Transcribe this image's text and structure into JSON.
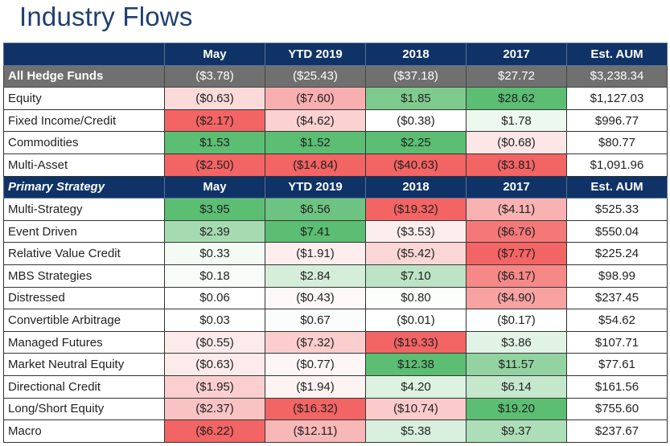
{
  "title": "Industry Flows",
  "colors": {
    "header_bg": "#0F3366",
    "summary_bg": "#707070",
    "title_color": "#1F3F73",
    "positive_max": "#5BBE73",
    "negative_max": "#F36464"
  },
  "sections": [
    {
      "header": {
        "label": "",
        "columns": [
          "May",
          "YTD 2019",
          "2018",
          "2017",
          "Est. AUM"
        ]
      },
      "rows": [
        {
          "type": "summary",
          "label": "All Hedge Funds",
          "cells": [
            {
              "text": "($3.78)",
              "bg": "#707070"
            },
            {
              "text": "($25.43)",
              "bg": "#707070"
            },
            {
              "text": "($37.18)",
              "bg": "#707070"
            },
            {
              "text": "$27.72",
              "bg": "#707070"
            },
            {
              "text": "$3,238.34",
              "bg": "#707070"
            }
          ]
        },
        {
          "type": "row",
          "label": "Equity",
          "cells": [
            {
              "text": "($0.63)",
              "bg": "#FBDADA"
            },
            {
              "text": "($7.60)",
              "bg": "#F9AFAF"
            },
            {
              "text": "$1.85",
              "bg": "#7FCB8E"
            },
            {
              "text": "$28.62",
              "bg": "#5BBE73"
            },
            {
              "text": "$1,127.03",
              "bg": "#FFFFFF"
            }
          ]
        },
        {
          "type": "row",
          "label": "Fixed Income/Credit",
          "cells": [
            {
              "text": "($2.17)",
              "bg": "#F36464"
            },
            {
              "text": "($4.62)",
              "bg": "#FBD1D1"
            },
            {
              "text": "($0.38)",
              "bg": "#FFFFFF"
            },
            {
              "text": "$1.78",
              "bg": "#EDF8EF"
            },
            {
              "text": "$996.77",
              "bg": "#FFFFFF"
            }
          ]
        },
        {
          "type": "row",
          "label": "Commodities",
          "cells": [
            {
              "text": "$1.53",
              "bg": "#5BBE73"
            },
            {
              "text": "$1.52",
              "bg": "#5BBE73"
            },
            {
              "text": "$2.25",
              "bg": "#5BBE73"
            },
            {
              "text": "($0.68)",
              "bg": "#FDE6E6"
            },
            {
              "text": "$80.77",
              "bg": "#FFFFFF"
            }
          ]
        },
        {
          "type": "row",
          "label": "Multi-Asset",
          "cells": [
            {
              "text": "($2.50)",
              "bg": "#F36464"
            },
            {
              "text": "($14.84)",
              "bg": "#F36464"
            },
            {
              "text": "($40.63)",
              "bg": "#F36464"
            },
            {
              "text": "($3.81)",
              "bg": "#F36464"
            },
            {
              "text": "$1,091.96",
              "bg": "#FFFFFF"
            }
          ]
        }
      ]
    },
    {
      "header": {
        "label": "Primary Strategy",
        "columns": [
          "May",
          "YTD 2019",
          "2018",
          "2017",
          "Est. AUM"
        ]
      },
      "rows": [
        {
          "type": "row",
          "label": "Multi-Strategy",
          "cells": [
            {
              "text": "$3.95",
              "bg": "#5BBE73"
            },
            {
              "text": "$6.56",
              "bg": "#6DC482"
            },
            {
              "text": "($19.32)",
              "bg": "#F36464"
            },
            {
              "text": "($4.11)",
              "bg": "#F9B2B2"
            },
            {
              "text": "$525.33",
              "bg": "#FFFFFF"
            }
          ]
        },
        {
          "type": "row",
          "label": "Event Driven",
          "cells": [
            {
              "text": "$2.39",
              "bg": "#A6DBB1"
            },
            {
              "text": "$7.41",
              "bg": "#5BBE73"
            },
            {
              "text": "($3.53)",
              "bg": "#FDEEEE"
            },
            {
              "text": "($6.76)",
              "bg": "#F47878"
            },
            {
              "text": "$550.04",
              "bg": "#FFFFFF"
            }
          ]
        },
        {
          "type": "row",
          "label": "Relative Value Credit",
          "cells": [
            {
              "text": "$0.33",
              "bg": "#F4FBF5"
            },
            {
              "text": "($1.91)",
              "bg": "#FDEDED"
            },
            {
              "text": "($5.42)",
              "bg": "#FBD6D6"
            },
            {
              "text": "($7.77)",
              "bg": "#F36464"
            },
            {
              "text": "$225.24",
              "bg": "#FFFFFF"
            }
          ]
        },
        {
          "type": "row",
          "label": "MBS Strategies",
          "cells": [
            {
              "text": "$0.18",
              "bg": "#F8FCF9"
            },
            {
              "text": "$2.84",
              "bg": "#D4EED9"
            },
            {
              "text": "$7.10",
              "bg": "#BCE4C5"
            },
            {
              "text": "($6.17)",
              "bg": "#F68888"
            },
            {
              "text": "$98.99",
              "bg": "#FFFFFF"
            }
          ]
        },
        {
          "type": "row",
          "label": "Distressed",
          "cells": [
            {
              "text": "$0.06",
              "bg": "#FFFFFF"
            },
            {
              "text": "($0.43)",
              "bg": "#FEF8F8"
            },
            {
              "text": "$0.80",
              "bg": "#FCFEFC"
            },
            {
              "text": "($4.90)",
              "bg": "#F8A2A2"
            },
            {
              "text": "$237.45",
              "bg": "#FFFFFF"
            }
          ]
        },
        {
          "type": "row",
          "label": "Convertible Arbitrage",
          "cells": [
            {
              "text": "$0.03",
              "bg": "#FFFFFF"
            },
            {
              "text": "$0.67",
              "bg": "#FAFDFB"
            },
            {
              "text": "($0.01)",
              "bg": "#FFFFFF"
            },
            {
              "text": "($0.17)",
              "bg": "#FFFFFF"
            },
            {
              "text": "$54.62",
              "bg": "#FFFFFF"
            }
          ]
        },
        {
          "type": "row",
          "label": "Managed Futures",
          "cells": [
            {
              "text": "($0.55)",
              "bg": "#FDEBEB"
            },
            {
              "text": "($7.32)",
              "bg": "#FBCDCD"
            },
            {
              "text": "($19.33)",
              "bg": "#F36464"
            },
            {
              "text": "$3.86",
              "bg": "#E1F3E5"
            },
            {
              "text": "$107.71",
              "bg": "#FFFFFF"
            }
          ]
        },
        {
          "type": "row",
          "label": "Market Neutral Equity",
          "cells": [
            {
              "text": "($0.63)",
              "bg": "#FDEAEA"
            },
            {
              "text": "($0.77)",
              "bg": "#FEF6F6"
            },
            {
              "text": "$12.38",
              "bg": "#5BBE73"
            },
            {
              "text": "$11.57",
              "bg": "#93D3A1"
            },
            {
              "text": "$77.61",
              "bg": "#FFFFFF"
            }
          ]
        },
        {
          "type": "row",
          "label": "Directional Credit",
          "cells": [
            {
              "text": "($1.95)",
              "bg": "#FBCFCF"
            },
            {
              "text": "($1.94)",
              "bg": "#FEF3F3"
            },
            {
              "text": "$4.20",
              "bg": "#DDF2E1"
            },
            {
              "text": "$6.14",
              "bg": "#C5E8CD"
            },
            {
              "text": "$161.56",
              "bg": "#FFFFFF"
            }
          ]
        },
        {
          "type": "row",
          "label": "Long/Short Equity",
          "cells": [
            {
              "text": "($2.37)",
              "bg": "#FAC3C3"
            },
            {
              "text": "($16.32)",
              "bg": "#F36464"
            },
            {
              "text": "($10.74)",
              "bg": "#FBCBCB"
            },
            {
              "text": "$19.20",
              "bg": "#5BBE73"
            },
            {
              "text": "$755.60",
              "bg": "#FFFFFF"
            }
          ]
        },
        {
          "type": "row",
          "label": "Macro",
          "cells": [
            {
              "text": "($6.22)",
              "bg": "#F36464"
            },
            {
              "text": "($12.11)",
              "bg": "#F9B8B8"
            },
            {
              "text": "$5.38",
              "bg": "#D8F0DD"
            },
            {
              "text": "$9.37",
              "bg": "#AEDEB8"
            },
            {
              "text": "$237.67",
              "bg": "#FFFFFF"
            }
          ]
        }
      ]
    }
  ]
}
